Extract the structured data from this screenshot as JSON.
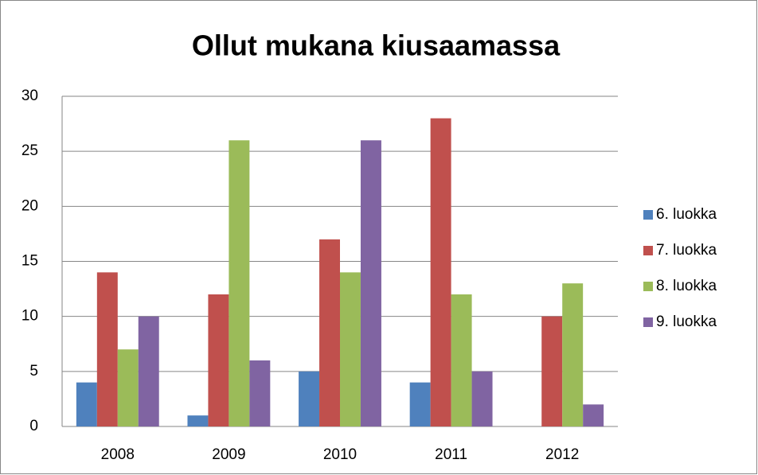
{
  "chart_data": {
    "type": "bar",
    "title": "Ollut mukana kiusaamassa",
    "categories": [
      "2008",
      "2009",
      "2010",
      "2011",
      "2012"
    ],
    "series": [
      {
        "name": "6. luokka",
        "color": "#4f81bd",
        "values": [
          4,
          1,
          5,
          4,
          0
        ]
      },
      {
        "name": "7. luokka",
        "color": "#c0504d",
        "values": [
          14,
          12,
          17,
          28,
          10
        ]
      },
      {
        "name": "8. luokka",
        "color": "#9bbb59",
        "values": [
          7,
          26,
          14,
          12,
          13
        ]
      },
      {
        "name": "9. luokka",
        "color": "#8064a2",
        "values": [
          10,
          6,
          26,
          5,
          2
        ]
      }
    ],
    "ylim": [
      0,
      30
    ],
    "yticks": [
      0,
      5,
      10,
      15,
      20,
      25,
      30
    ],
    "grid": true,
    "legend": "right"
  }
}
